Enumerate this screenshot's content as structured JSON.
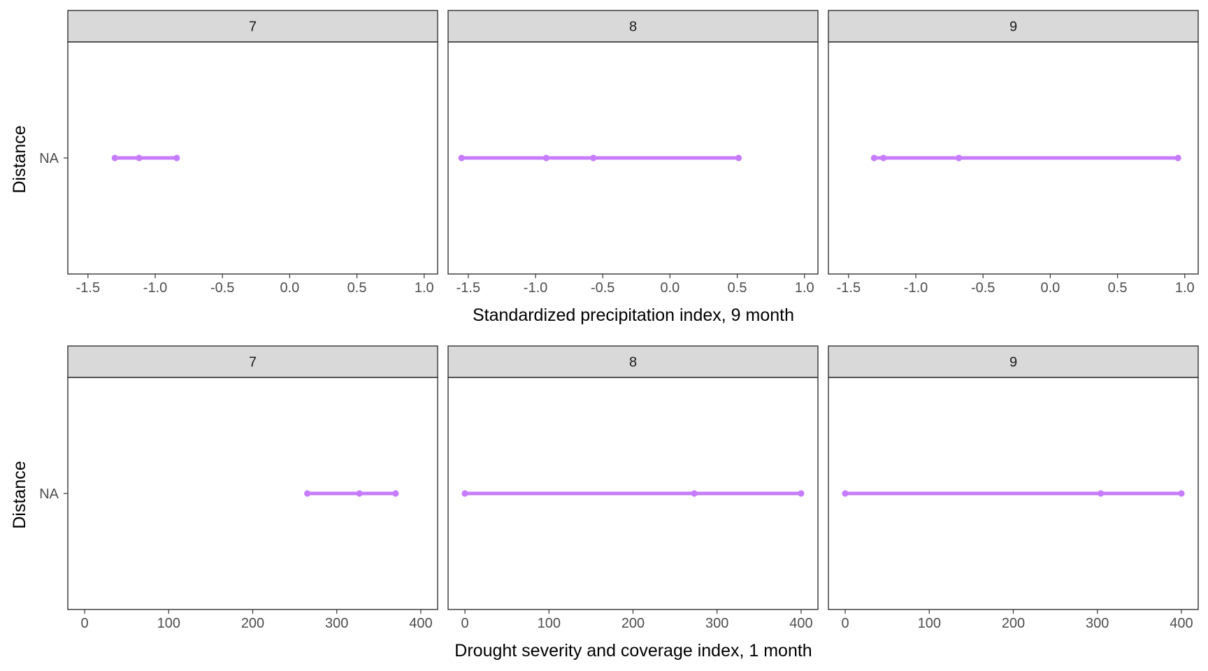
{
  "figure": {
    "rows": [
      {
        "xlabel": "Standardized precipitation index, 9 month",
        "ylabel": "Distance",
        "category": "NA"
      },
      {
        "xlabel": "Drought severity and coverage index, 1 month",
        "ylabel": "Distance",
        "category": "NA"
      }
    ]
  },
  "colors": {
    "series": "#C77CFF",
    "strip_fill": "#D9D9D9",
    "panel_border": "#333333",
    "tick_text": "#4D4D4D"
  },
  "chart_data": [
    {
      "type": "line",
      "panel": "7",
      "xlabel": "Standardized precipitation index, 9 month",
      "ylabel": "Distance",
      "y_category": "NA",
      "xlim": [
        -1.65,
        1.1
      ],
      "xticks": [
        -1.5,
        -1.0,
        -0.5,
        0.0,
        0.5,
        1.0
      ],
      "xtick_labels": [
        "-1.5",
        "-1.0",
        "-0.5",
        "0.0",
        "0.5",
        "1.0"
      ],
      "x": [
        -1.3,
        -1.12,
        -0.84
      ],
      "grid": false
    },
    {
      "type": "line",
      "panel": "8",
      "xlabel": "Standardized precipitation index, 9 month",
      "ylabel": "Distance",
      "y_category": "NA",
      "xlim": [
        -1.65,
        1.1
      ],
      "xticks": [
        -1.5,
        -1.0,
        -0.5,
        0.0,
        0.5,
        1.0
      ],
      "xtick_labels": [
        "-1.5",
        "-1.0",
        "-0.5",
        "0.0",
        "0.5",
        "1.0"
      ],
      "x": [
        -1.55,
        -0.92,
        -0.57,
        0.51
      ],
      "grid": false
    },
    {
      "type": "line",
      "panel": "9",
      "xlabel": "Standardized precipitation index, 9 month",
      "ylabel": "Distance",
      "y_category": "NA",
      "xlim": [
        -1.65,
        1.1
      ],
      "xticks": [
        -1.5,
        -1.0,
        -0.5,
        0.0,
        0.5,
        1.0
      ],
      "xtick_labels": [
        "-1.5",
        "-1.0",
        "-0.5",
        "0.0",
        "0.5",
        "1.0"
      ],
      "x": [
        -1.31,
        -1.24,
        -0.68,
        0.95
      ],
      "grid": false
    },
    {
      "type": "line",
      "panel": "7",
      "xlabel": "Drought severity and coverage index, 1 month",
      "ylabel": "Distance",
      "y_category": "NA",
      "xlim": [
        -20,
        420
      ],
      "xticks": [
        0,
        100,
        200,
        300,
        400
      ],
      "xtick_labels": [
        "0",
        "100",
        "200",
        "300",
        "400"
      ],
      "x": [
        265,
        327,
        370
      ],
      "grid": false
    },
    {
      "type": "line",
      "panel": "8",
      "xlabel": "Drought severity and coverage index, 1 month",
      "ylabel": "Distance",
      "y_category": "NA",
      "xlim": [
        -20,
        420
      ],
      "xticks": [
        0,
        100,
        200,
        300,
        400
      ],
      "xtick_labels": [
        "0",
        "100",
        "200",
        "300",
        "400"
      ],
      "x": [
        0,
        273,
        400
      ],
      "grid": false
    },
    {
      "type": "line",
      "panel": "9",
      "xlabel": "Drought severity and coverage index, 1 month",
      "ylabel": "Distance",
      "y_category": "NA",
      "xlim": [
        -20,
        420
      ],
      "xticks": [
        0,
        100,
        200,
        300,
        400
      ],
      "xtick_labels": [
        "0",
        "100",
        "200",
        "300",
        "400"
      ],
      "x": [
        0,
        304,
        400
      ],
      "grid": false
    }
  ]
}
